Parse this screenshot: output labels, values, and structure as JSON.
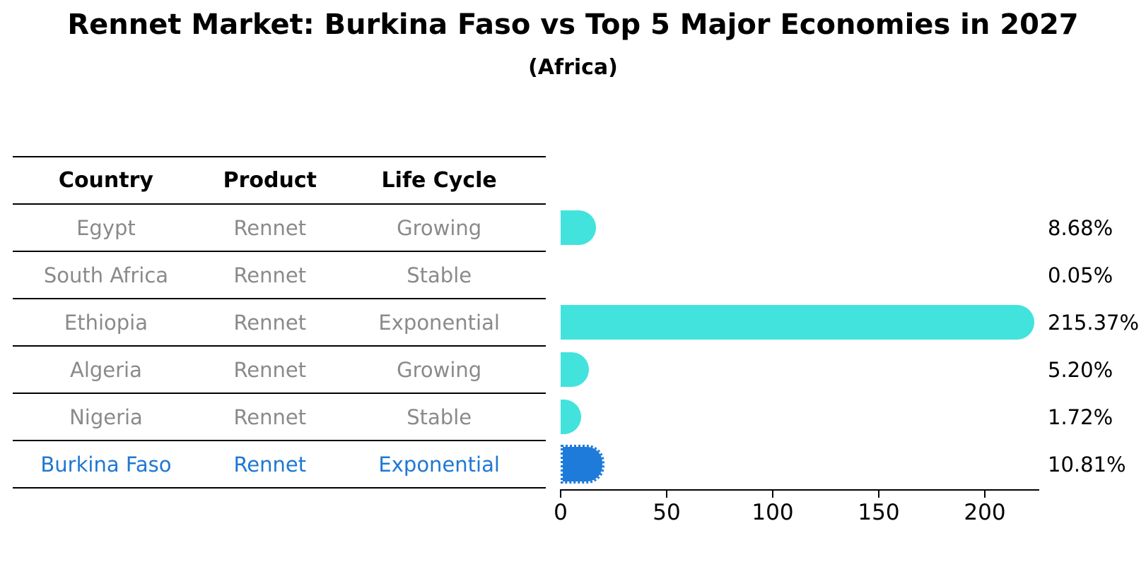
{
  "title": "Rennet Market: Burkina Faso vs Top 5 Major Economies in 2027",
  "subtitle": "(Africa)",
  "table": {
    "headers": [
      "Country",
      "Product",
      "Life Cycle"
    ],
    "rows": [
      {
        "country": "Egypt",
        "product": "Rennet",
        "life_cycle": "Growing",
        "highlight": false
      },
      {
        "country": "South Africa",
        "product": "Rennet",
        "life_cycle": "Stable",
        "highlight": false
      },
      {
        "country": "Ethiopia",
        "product": "Rennet",
        "life_cycle": "Exponential",
        "highlight": false
      },
      {
        "country": "Algeria",
        "product": "Rennet",
        "life_cycle": "Growing",
        "highlight": false
      },
      {
        "country": "Nigeria",
        "product": "Rennet",
        "life_cycle": "Stable",
        "highlight": false
      },
      {
        "country": "Burkina Faso",
        "product": "Rennet",
        "life_cycle": "Exponential",
        "highlight": true
      }
    ]
  },
  "chart_data": {
    "type": "bar",
    "orientation": "horizontal",
    "title": "Rennet Market: Burkina Faso vs Top 5 Major Economies in 2027 (Africa)",
    "categories": [
      "Egypt",
      "South Africa",
      "Ethiopia",
      "Algeria",
      "Nigeria",
      "Burkina Faso"
    ],
    "values": [
      8.68,
      0.05,
      215.37,
      5.2,
      1.72,
      10.81
    ],
    "value_labels": [
      "8.68%",
      "0.05%",
      "215.37%",
      "5.20%",
      "1.72%",
      "10.81%"
    ],
    "x_ticks": [
      0,
      50,
      100,
      150,
      200
    ],
    "xlim": [
      0,
      226
    ],
    "grid": false,
    "legend": false,
    "highlight_index": 5,
    "bar_colors": {
      "default": "#42e3dc",
      "highlight": "#1e7bd9"
    }
  },
  "colors": {
    "bar_cyan": "#42e3dc",
    "bar_blue": "#1e7bd9",
    "highlight_text": "#1e78d2",
    "table_text": "#8a8a8a",
    "axis_line": "#000000"
  }
}
